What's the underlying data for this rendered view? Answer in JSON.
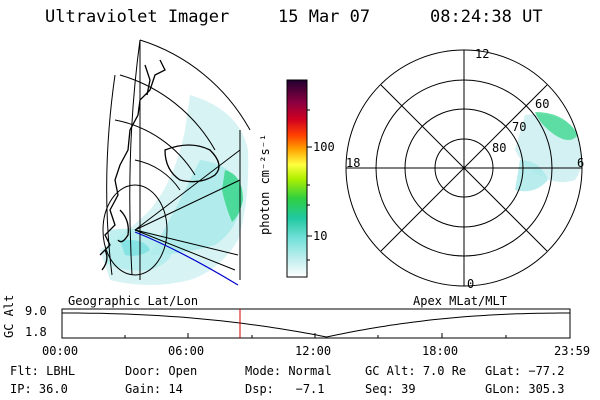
{
  "header": {
    "instrument": "Ultraviolet Imager",
    "date": "15 Mar 07",
    "time": "08:24:38 UT"
  },
  "colorbar": {
    "label": "photon cm⁻²s⁻¹",
    "ticks": [
      "100",
      "10"
    ]
  },
  "geo_panel": {
    "title": "Geographic Lat/Lon"
  },
  "apex_panel": {
    "title": "Apex MLat/MLT",
    "mlt_labels": {
      "top": "12",
      "left": "18",
      "right": "6",
      "bottom": "0"
    },
    "lat_labels": [
      "60",
      "70",
      "80"
    ]
  },
  "altitude_plot": {
    "ylabel": "GC Alt",
    "yticks": [
      "9.0",
      "1.8"
    ],
    "xticks": [
      "00:00",
      "06:00",
      "12:00",
      "18:00",
      "23:59"
    ],
    "marker_hours": 8.41,
    "curve": {
      "start_alt": 9.0,
      "min_hour": 12.5,
      "min_alt": 1.8,
      "end_alt": 9.0
    }
  },
  "status": {
    "row1": [
      {
        "label": "Flt:",
        "value": "LBHL"
      },
      {
        "label": "Door:",
        "value": "Open"
      },
      {
        "label": "Mode:",
        "value": "Normal"
      },
      {
        "label": "GC Alt:",
        "value": "7.0 Re"
      },
      {
        "label": "GLat:",
        "value": "−77.2"
      }
    ],
    "row2": [
      {
        "label": "IP:",
        "value": "36.0"
      },
      {
        "label": "Gain:",
        "value": "14"
      },
      {
        "label": "Dsp:",
        "value": "  −7.1"
      },
      {
        "label": "Seq:",
        "value": "39"
      },
      {
        "label": "GLon:",
        "value": "305.3"
      }
    ]
  },
  "colors": {
    "aurora_low": "#a0e8e8",
    "aurora_mid": "#40e0c0",
    "aurora_high": "#30d060",
    "marker": "#d00000",
    "terminator": "#0000cc"
  }
}
